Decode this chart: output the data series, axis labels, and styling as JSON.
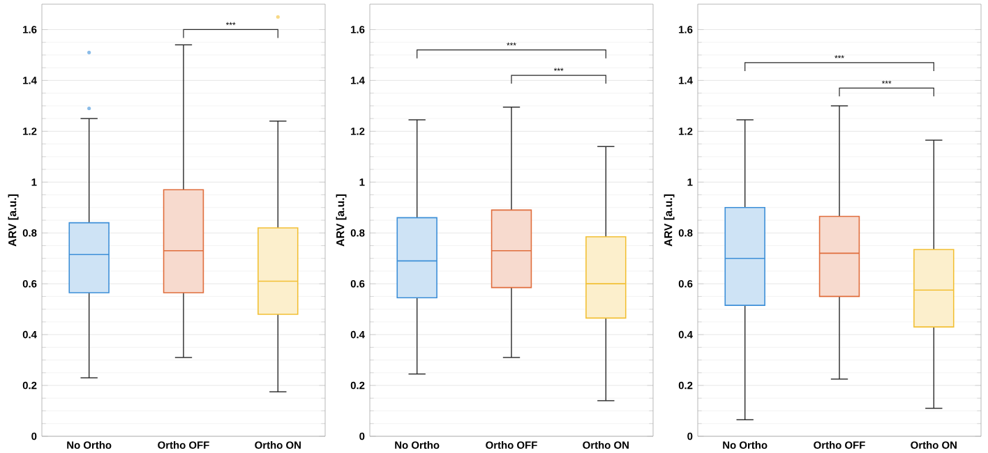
{
  "chart_data": [
    {
      "type": "box",
      "ylabel": "ARV [a.u.]",
      "categories": [
        "No Ortho",
        "Ortho OFF",
        "Ortho ON"
      ],
      "colors": [
        "#3d8fd8",
        "#e06d3c",
        "#f2c035"
      ],
      "ylim": [
        0,
        1.7
      ],
      "yticks": [
        0,
        0.2,
        0.4,
        0.6,
        0.8,
        1,
        1.2,
        1.4,
        1.6
      ],
      "grid": "y",
      "boxes": [
        {
          "low": 0.23,
          "q1": 0.565,
          "median": 0.715,
          "q3": 0.84,
          "high": 1.25,
          "outliers": [
            1.29,
            1.51
          ]
        },
        {
          "low": 0.31,
          "q1": 0.565,
          "median": 0.73,
          "q3": 0.97,
          "high": 1.54
        },
        {
          "low": 0.175,
          "q1": 0.48,
          "median": 0.61,
          "q3": 0.82,
          "high": 1.24,
          "outliers": [
            1.65
          ]
        }
      ],
      "annotations": [
        "***"
      ]
    },
    {
      "type": "box",
      "ylabel": "ARV [a.u.]",
      "categories": [
        "No Ortho",
        "Ortho OFF",
        "Ortho ON"
      ],
      "colors": [
        "#3d8fd8",
        "#e06d3c",
        "#f2c035"
      ],
      "ylim": [
        0,
        1.7
      ],
      "yticks": [
        0,
        0.2,
        0.4,
        0.6,
        0.8,
        1,
        1.2,
        1.4,
        1.6
      ],
      "grid": "y",
      "boxes": [
        {
          "low": 0.245,
          "q1": 0.545,
          "median": 0.69,
          "q3": 0.86,
          "high": 1.245
        },
        {
          "low": 0.31,
          "q1": 0.585,
          "median": 0.73,
          "q3": 0.89,
          "high": 1.295
        },
        {
          "low": 0.14,
          "q1": 0.465,
          "median": 0.6,
          "q3": 0.785,
          "high": 1.14
        }
      ],
      "annotations": [
        "***",
        "***"
      ]
    },
    {
      "type": "box",
      "ylabel": "ARV [a.u.]",
      "categories": [
        "No Ortho",
        "Ortho OFF",
        "Ortho ON"
      ],
      "colors": [
        "#3d8fd8",
        "#e06d3c",
        "#f2c035"
      ],
      "ylim": [
        0,
        1.7
      ],
      "yticks": [
        0,
        0.2,
        0.4,
        0.6,
        0.8,
        1,
        1.2,
        1.4,
        1.6
      ],
      "grid": "y",
      "boxes": [
        {
          "low": 0.065,
          "q1": 0.515,
          "median": 0.7,
          "q3": 0.9,
          "high": 1.245
        },
        {
          "low": 0.225,
          "q1": 0.55,
          "median": 0.72,
          "q3": 0.865,
          "high": 1.3
        },
        {
          "low": 0.11,
          "q1": 0.43,
          "median": 0.575,
          "q3": 0.735,
          "high": 1.165
        }
      ],
      "annotations": [
        "***",
        "***"
      ]
    }
  ]
}
